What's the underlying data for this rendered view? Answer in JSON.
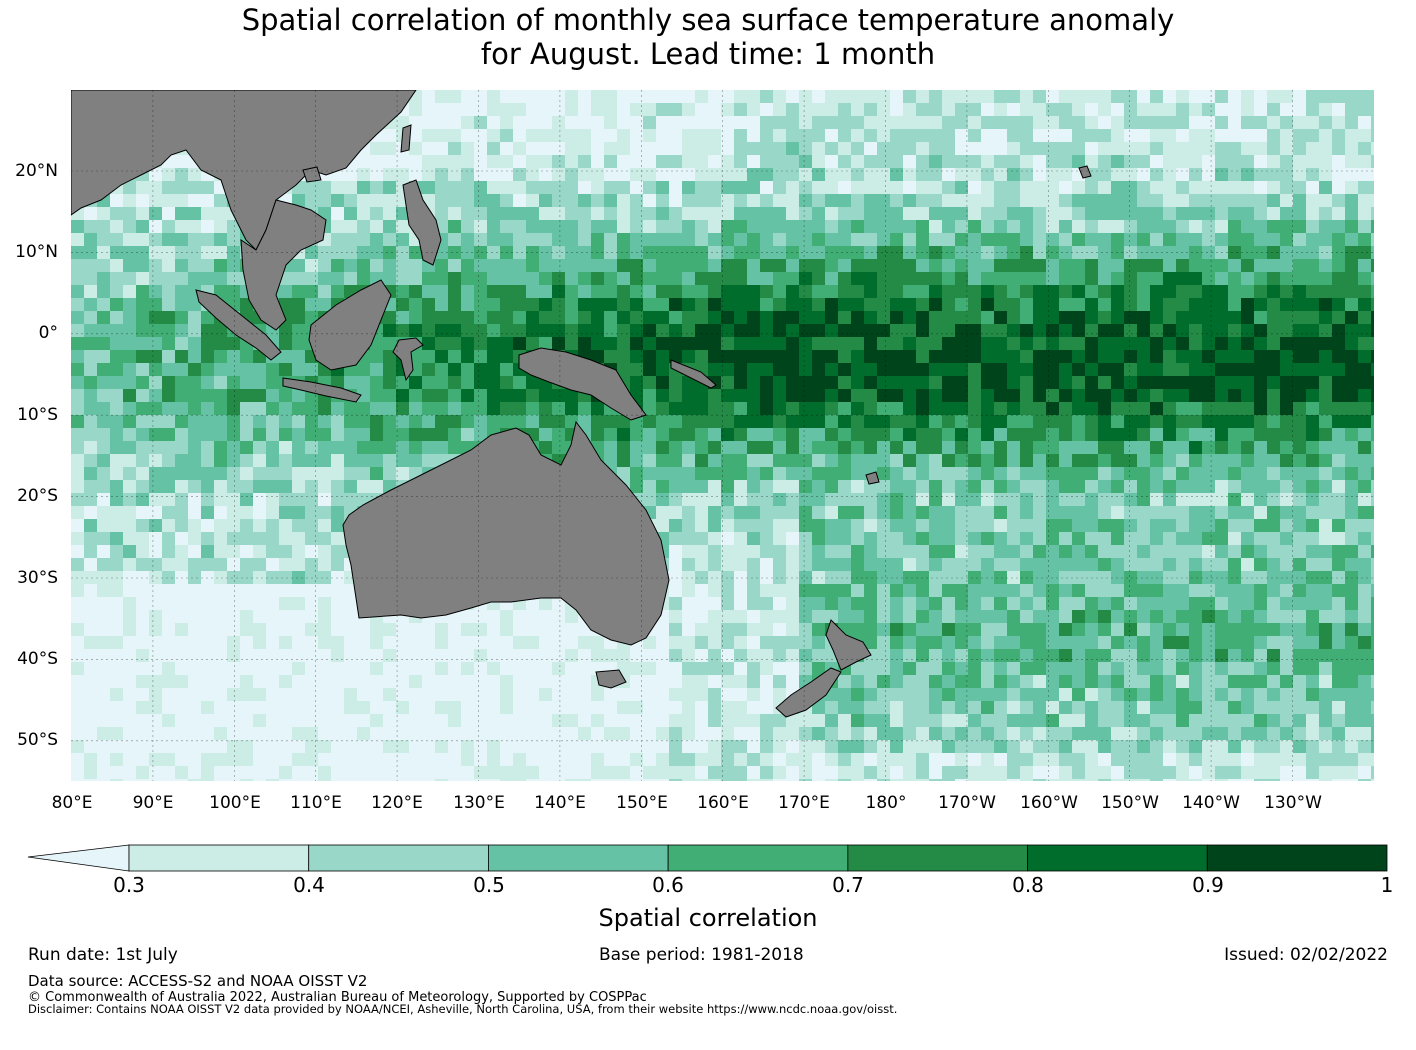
{
  "title_line1": "Spatial correlation of monthly sea surface temperature anomaly",
  "title_line2": "for August. Lead time: 1 month",
  "map": {
    "lat_labels": [
      "20°N",
      "10°N",
      "0°",
      "10°S",
      "20°S",
      "30°S",
      "40°S",
      "50°S"
    ],
    "lon_labels": [
      "80°E",
      "90°E",
      "100°E",
      "110°E",
      "120°E",
      "130°E",
      "140°E",
      "150°E",
      "160°E",
      "170°E",
      "180°",
      "170°W",
      "160°W",
      "150°W",
      "140°W",
      "130°W"
    ],
    "land_color": "#808080",
    "lon_range": [
      80,
      240
    ],
    "lat_range": [
      -55,
      30
    ]
  },
  "colorbar": {
    "label": "Spatial correlation",
    "ticks": [
      "0.3",
      "0.4",
      "0.5",
      "0.6",
      "0.7",
      "0.8",
      "0.9",
      "1"
    ],
    "colors": [
      "#e5f5f9",
      "#ccece6",
      "#99d8c9",
      "#66c2a4",
      "#41ae76",
      "#238b45",
      "#006d2c",
      "#00441b"
    ]
  },
  "footer": {
    "run_date": "Run date: 1st July",
    "base_period": "Base period: 1981-2018",
    "issued": "Issued: 02/02/2022",
    "data_source": "Data source: ACCESS-S2 and NOAA OISST V2",
    "copyright": "© Commonwealth of Australia 2022, Australian Bureau of Meteorology, Supported by COSPPac",
    "disclaimer": "Disclaimer: Contains NOAA OISST V2 data provided by NOAA/NCEI, Asheville, North Carolina, USA, from their website https://www.ncdc.noaa.gov/oisst."
  }
}
